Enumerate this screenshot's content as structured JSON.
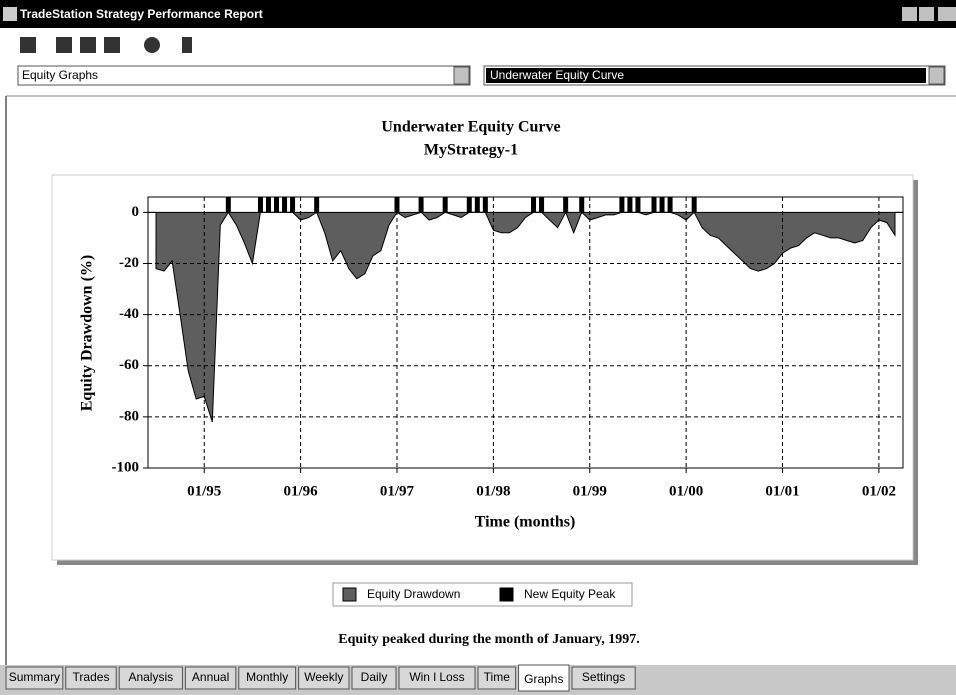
{
  "window": {
    "title": "TradeStation Strategy Performance Report"
  },
  "selectors": {
    "left": "Equity Graphs",
    "right": "Underwater Equity Curve"
  },
  "chart_data": {
    "type": "area",
    "title": "Underwater Equity Curve",
    "subtitle": "MyStrategy-1",
    "xlabel": "Time (months)",
    "ylabel": "Equity Drawdown (%)",
    "x": [
      "07/94",
      "08/94",
      "09/94",
      "10/94",
      "11/94",
      "12/94",
      "01/95",
      "02/95",
      "03/95",
      "04/95",
      "05/95",
      "06/95",
      "07/95",
      "08/95",
      "09/95",
      "10/95",
      "11/95",
      "12/95",
      "01/96",
      "02/96",
      "03/96",
      "04/96",
      "05/96",
      "06/96",
      "07/96",
      "08/96",
      "09/96",
      "10/96",
      "11/96",
      "12/96",
      "01/97",
      "02/97",
      "03/97",
      "04/97",
      "05/97",
      "06/97",
      "07/97",
      "08/97",
      "09/97",
      "10/97",
      "11/97",
      "12/97",
      "01/98",
      "02/98",
      "03/98",
      "04/98",
      "05/98",
      "06/98",
      "07/98",
      "08/98",
      "09/98",
      "10/98",
      "11/98",
      "12/98",
      "01/99",
      "02/99",
      "03/99",
      "04/99",
      "05/99",
      "06/99",
      "07/99",
      "08/99",
      "09/99",
      "10/99",
      "11/99",
      "12/99",
      "01/00",
      "02/00",
      "03/00",
      "04/00",
      "05/00",
      "06/00",
      "07/00",
      "08/00",
      "09/00",
      "10/00",
      "11/00",
      "12/00",
      "01/01",
      "02/01",
      "03/01",
      "04/01",
      "05/01",
      "06/01",
      "07/01",
      "08/01",
      "09/01",
      "10/01",
      "11/01",
      "12/01",
      "01/02",
      "02/02",
      "03/02"
    ],
    "xlim": [
      "06/94",
      "04/02"
    ],
    "xticks": [
      "01/95",
      "01/96",
      "01/97",
      "01/98",
      "01/99",
      "01/00",
      "01/01",
      "01/02"
    ],
    "ylim": [
      -100,
      6
    ],
    "yticks": [
      0,
      -20,
      -40,
      -60,
      -80,
      -100
    ],
    "grid": true,
    "series": [
      {
        "name": "Equity Drawdown",
        "color": "#5e5e5e",
        "values": [
          -22,
          -23,
          -19,
          -40,
          -62,
          -73,
          -72,
          -82,
          -5,
          0,
          -5,
          -12,
          -20,
          0,
          0,
          0,
          0,
          0,
          -3,
          -2,
          0,
          -8,
          -19,
          -15,
          -22,
          -26,
          -24,
          -17,
          -15,
          -5,
          0,
          -2,
          -1,
          0,
          -3,
          -2,
          0,
          -1,
          -2,
          0,
          0,
          0,
          -7,
          -8,
          -8,
          -6,
          -2,
          0,
          0,
          -3,
          -6,
          0,
          -8,
          0,
          -3,
          -2,
          -1,
          -1,
          0,
          0,
          0,
          -1,
          0,
          0,
          0,
          -1,
          -3,
          0,
          -6,
          -9,
          -10,
          -13,
          -16,
          -19,
          -22,
          -23,
          -22,
          -20,
          -16,
          -14,
          -13,
          -10,
          -8,
          -9,
          -10,
          -10,
          -11,
          -12,
          -11,
          -6,
          -3,
          -4,
          -9
        ]
      },
      {
        "name": "New Equity Peak",
        "color": "#000000",
        "x": [
          "04/95",
          "08/95",
          "09/95",
          "10/95",
          "11/95",
          "12/95",
          "03/96",
          "01/97",
          "04/97",
          "07/97",
          "10/97",
          "11/97",
          "12/97",
          "06/98",
          "07/98",
          "10/98",
          "12/98",
          "05/99",
          "06/99",
          "07/99",
          "09/99",
          "10/99",
          "11/99",
          "02/00"
        ]
      }
    ]
  },
  "note": "Equity peaked during the month of January, 1997.",
  "tabs": [
    "Summary",
    "Trades",
    "Analysis",
    "Annual",
    "Monthly",
    "Weekly",
    "Daily",
    "Win l Loss",
    "Time",
    "Graphs",
    "Settings"
  ],
  "active_tab": 9
}
